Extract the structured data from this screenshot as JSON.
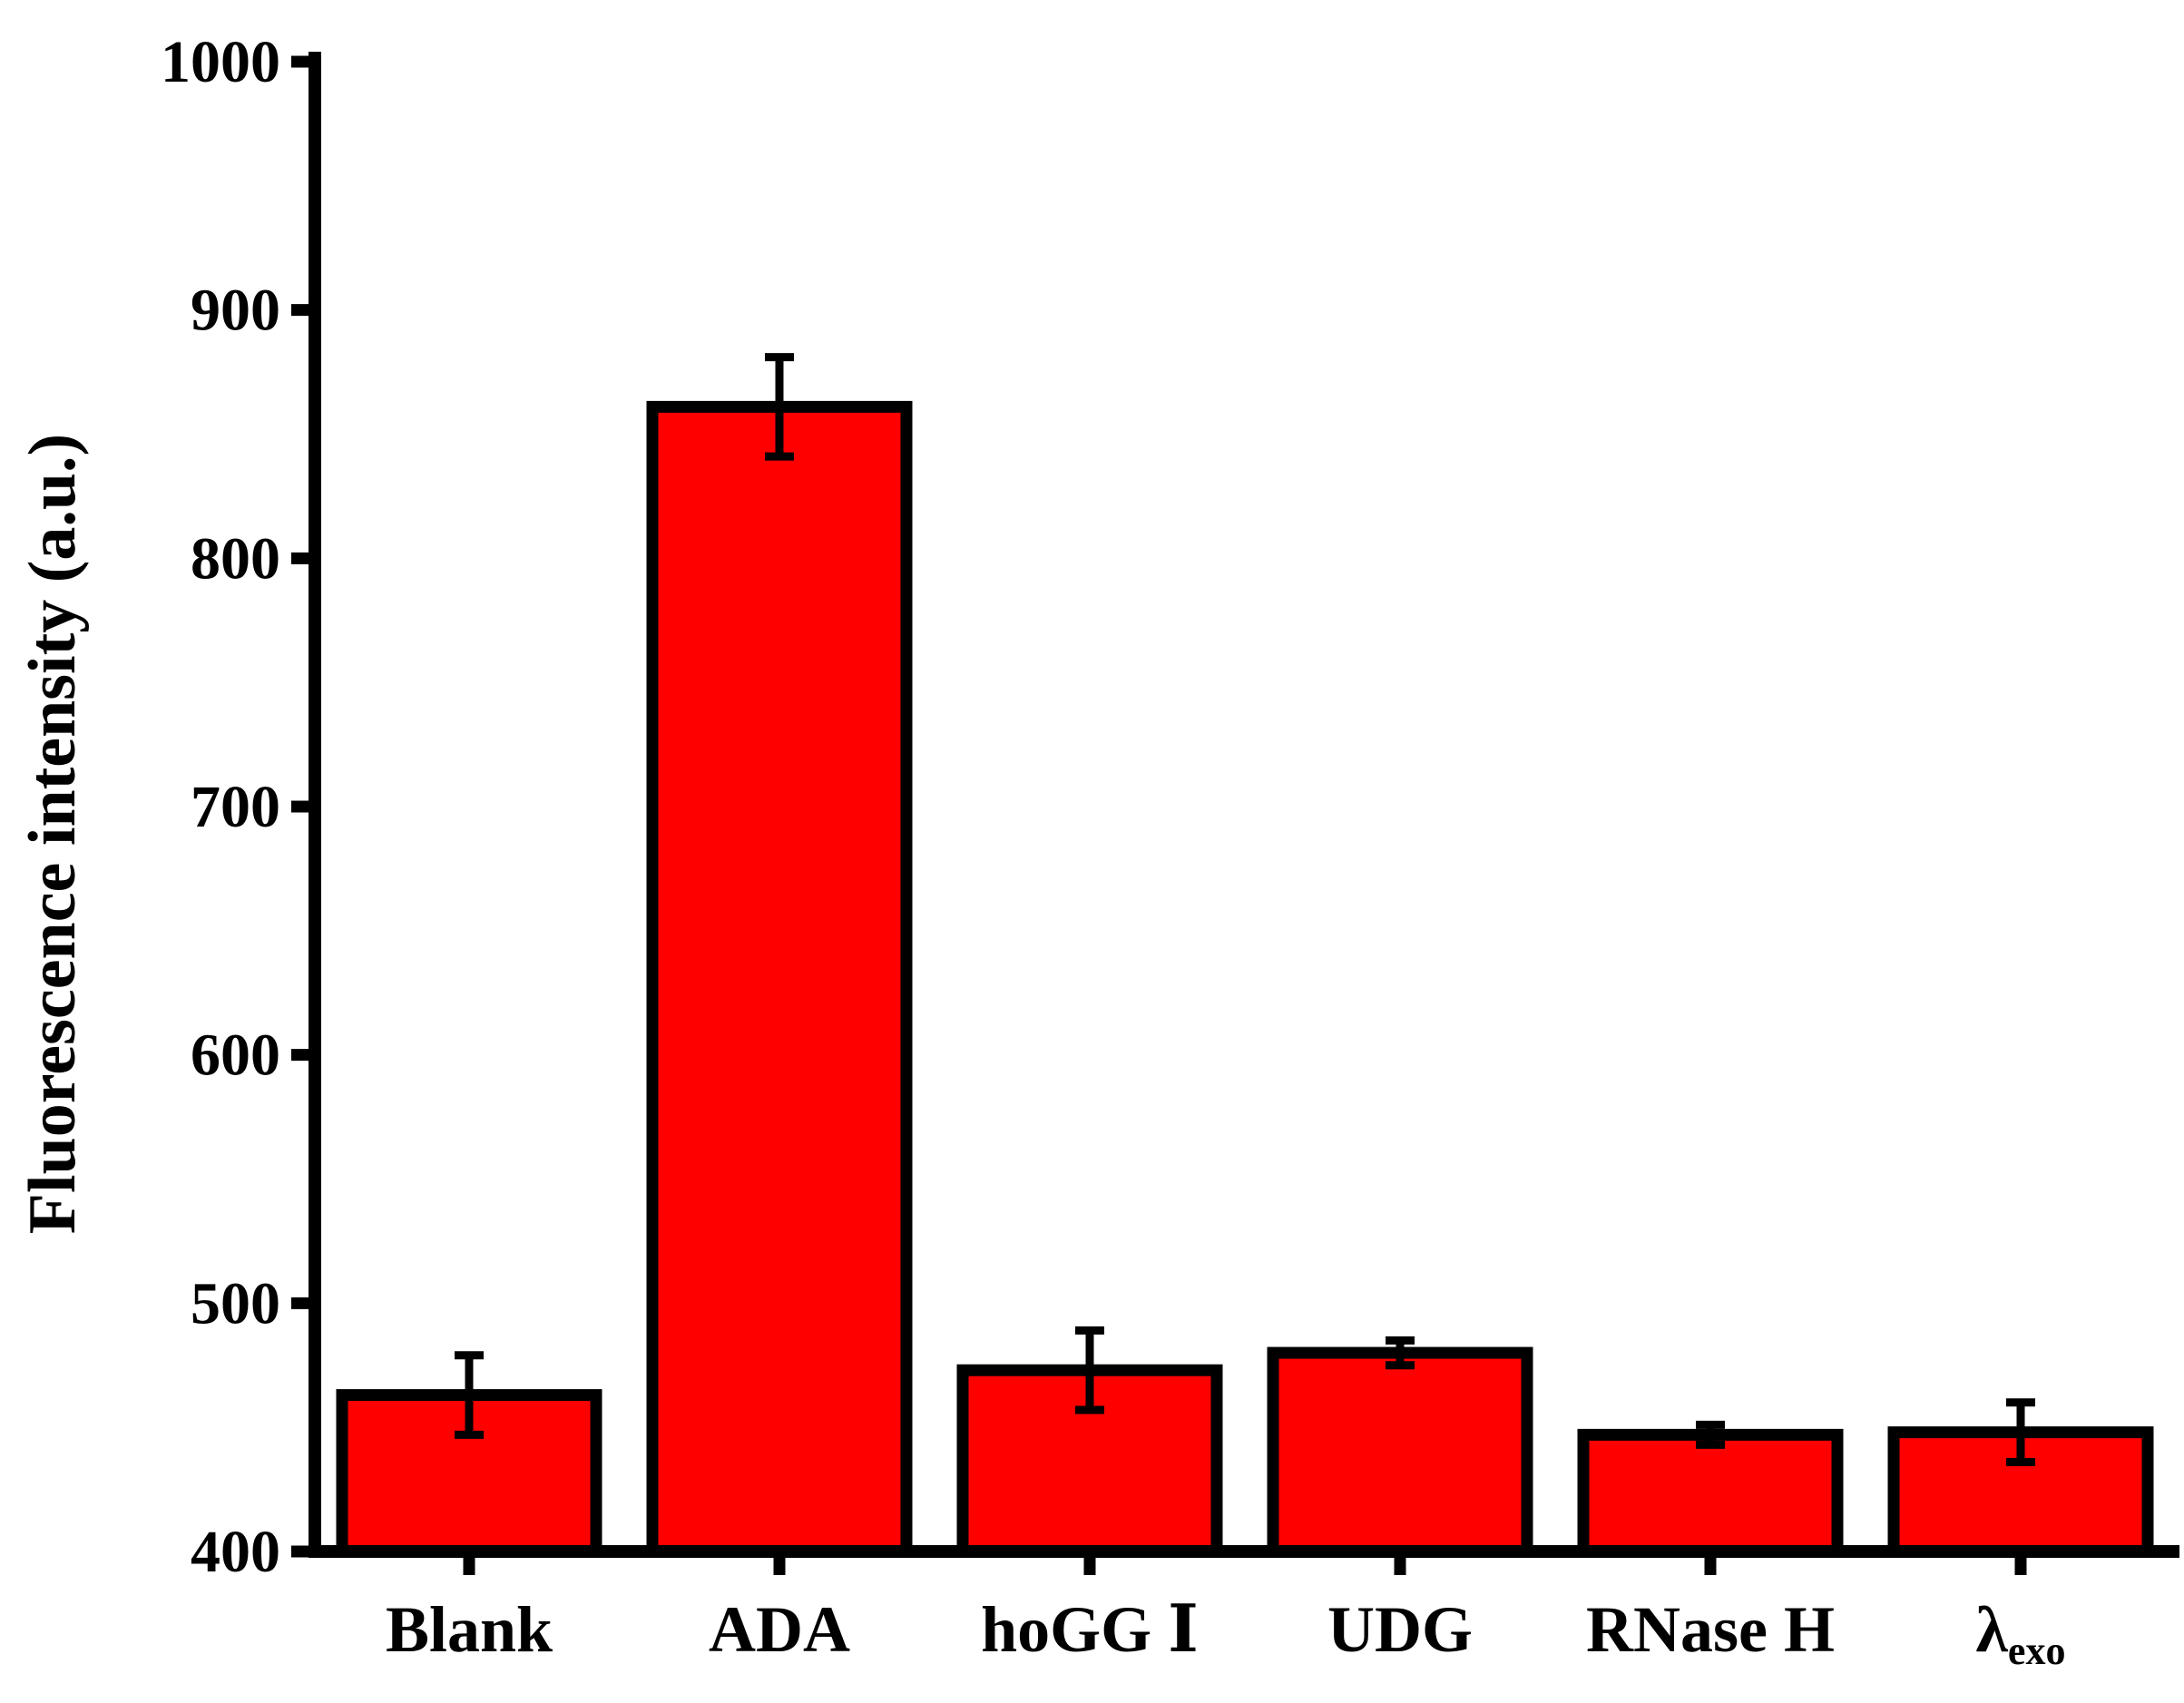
{
  "colors": {
    "bar_fill": "#ff0000",
    "axis": "#000000"
  },
  "chart_data": {
    "type": "bar",
    "categories": [
      "Blank",
      "ADA",
      "hoGG Ⅰ",
      "UDG",
      "RNase H",
      "λexo"
    ],
    "category_labels": [
      {
        "main": "Blank",
        "sub": ""
      },
      {
        "main": "ADA",
        "sub": ""
      },
      {
        "main": "hoGG Ⅰ",
        "sub": ""
      },
      {
        "main": "UDG",
        "sub": ""
      },
      {
        "main": "RNase H",
        "sub": ""
      },
      {
        "main": "λ",
        "sub": "exo"
      }
    ],
    "values": [
      463,
      861,
      473,
      480,
      447,
      448
    ],
    "errors": [
      16,
      20,
      16,
      5,
      4,
      12
    ],
    "title": "",
    "xlabel": "",
    "ylabel": "Fluorescence intensity (a.u.)",
    "ylim": [
      400,
      1000
    ],
    "yticks": [
      400,
      500,
      600,
      700,
      800,
      900,
      1000
    ],
    "ytick_labels": [
      "400",
      "500",
      "600",
      "700",
      "800",
      "900",
      "1000"
    ],
    "grid": false,
    "legend": "none",
    "error_bars": true
  }
}
